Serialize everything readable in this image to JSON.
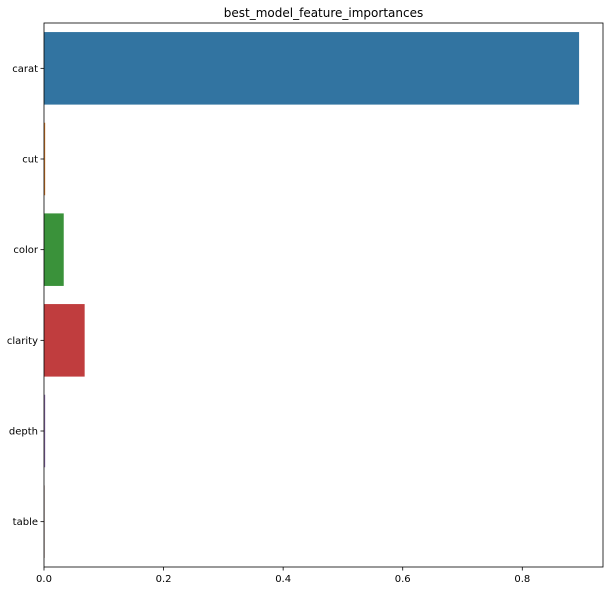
{
  "chart_data": {
    "type": "bar",
    "orientation": "horizontal",
    "title": "best_model_feature_importances",
    "xlabel": "",
    "ylabel": "",
    "categories": [
      "carat",
      "cut",
      "color",
      "clarity",
      "depth",
      "table"
    ],
    "values": [
      0.895,
      0.002,
      0.033,
      0.068,
      0.002,
      0.0005
    ],
    "colors": [
      "#3274a1",
      "#e1812c",
      "#3a923a",
      "#c03d3e",
      "#9372b2",
      "#845b53"
    ],
    "xlim": [
      0,
      0.935
    ],
    "xticks": [
      0,
      0.2,
      0.4,
      0.6,
      0.8
    ],
    "xtick_labels": [
      "0.0",
      "0.2",
      "0.4",
      "0.6",
      "0.8"
    ],
    "grid": false,
    "legend": "none"
  }
}
